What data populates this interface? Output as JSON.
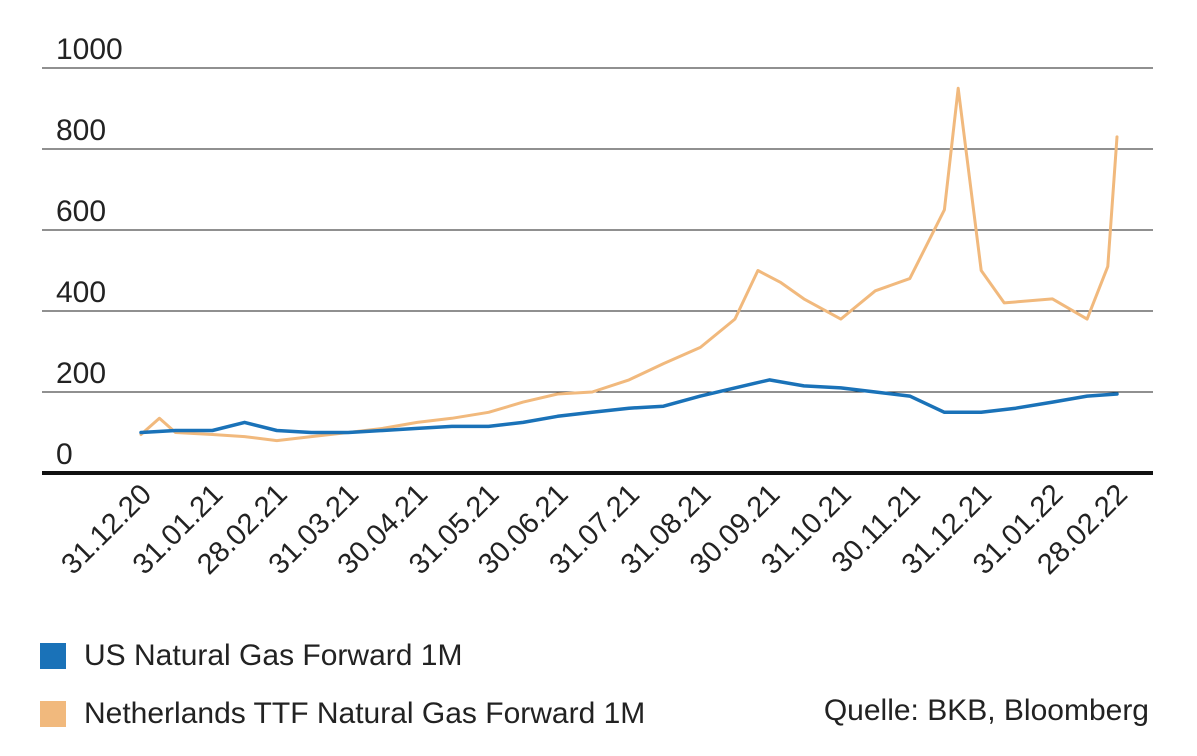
{
  "chart_data": {
    "type": "line",
    "title": "",
    "xlabel": "",
    "ylabel": "",
    "ylim": [
      0,
      1000
    ],
    "yticks": [
      "0",
      "200",
      "400",
      "600",
      "800",
      "1000"
    ],
    "xticks": [
      "31.12.20",
      "31.01.21",
      "28.02.21",
      "31.03.21",
      "30.04.21",
      "31.05.21",
      "30.06.21",
      "31.07.21",
      "31.08.21",
      "30.09.21",
      "31.10.21",
      "30.11.21",
      "31.12.21",
      "31.01.22",
      "28.02.22"
    ],
    "grid": true,
    "legend_position": "bottom-left",
    "series": [
      {
        "name": "US Natural Gas Forward 1M",
        "color": "#1a72b8",
        "x": [
          "31.12.20",
          "15.01.21",
          "31.01.21",
          "14.02.21",
          "28.02.21",
          "15.03.21",
          "31.03.21",
          "15.04.21",
          "30.04.21",
          "15.05.21",
          "31.05.21",
          "15.06.21",
          "30.06.21",
          "15.07.21",
          "31.07.21",
          "15.08.21",
          "31.08.21",
          "15.09.21",
          "30.09.21",
          "15.10.21",
          "31.10.21",
          "15.11.21",
          "30.11.21",
          "15.12.21",
          "31.12.21",
          "15.01.22",
          "31.01.22",
          "15.02.22",
          "28.02.22"
        ],
        "values": [
          100,
          105,
          105,
          125,
          105,
          100,
          100,
          105,
          110,
          115,
          115,
          125,
          140,
          150,
          160,
          165,
          190,
          210,
          230,
          215,
          210,
          200,
          190,
          150,
          150,
          160,
          175,
          190,
          195
        ]
      },
      {
        "name": "Netherlands TTF Natural Gas Forward 1M",
        "color": "#f1b97d",
        "x": [
          "31.12.20",
          "08.01.21",
          "15.01.21",
          "31.01.21",
          "14.02.21",
          "28.02.21",
          "15.03.21",
          "31.03.21",
          "15.04.21",
          "30.04.21",
          "15.05.21",
          "31.05.21",
          "15.06.21",
          "30.06.21",
          "15.07.21",
          "31.07.21",
          "15.08.21",
          "31.08.21",
          "15.09.21",
          "25.09.21",
          "05.10.21",
          "15.10.21",
          "31.10.21",
          "15.11.21",
          "30.11.21",
          "15.12.21",
          "21.12.21",
          "31.12.21",
          "10.01.22",
          "31.01.22",
          "15.02.22",
          "24.02.22",
          "28.02.22"
        ],
        "values": [
          95,
          135,
          100,
          95,
          90,
          80,
          90,
          100,
          110,
          125,
          135,
          150,
          175,
          195,
          200,
          230,
          270,
          310,
          380,
          500,
          470,
          430,
          380,
          450,
          480,
          650,
          950,
          500,
          420,
          430,
          380,
          510,
          830
        ]
      }
    ]
  },
  "legend": {
    "us_label": "US Natural Gas Forward 1M",
    "ttf_label": "Netherlands TTF Natural Gas Forward 1M"
  },
  "source": "Quelle: BKB, Bloomberg"
}
